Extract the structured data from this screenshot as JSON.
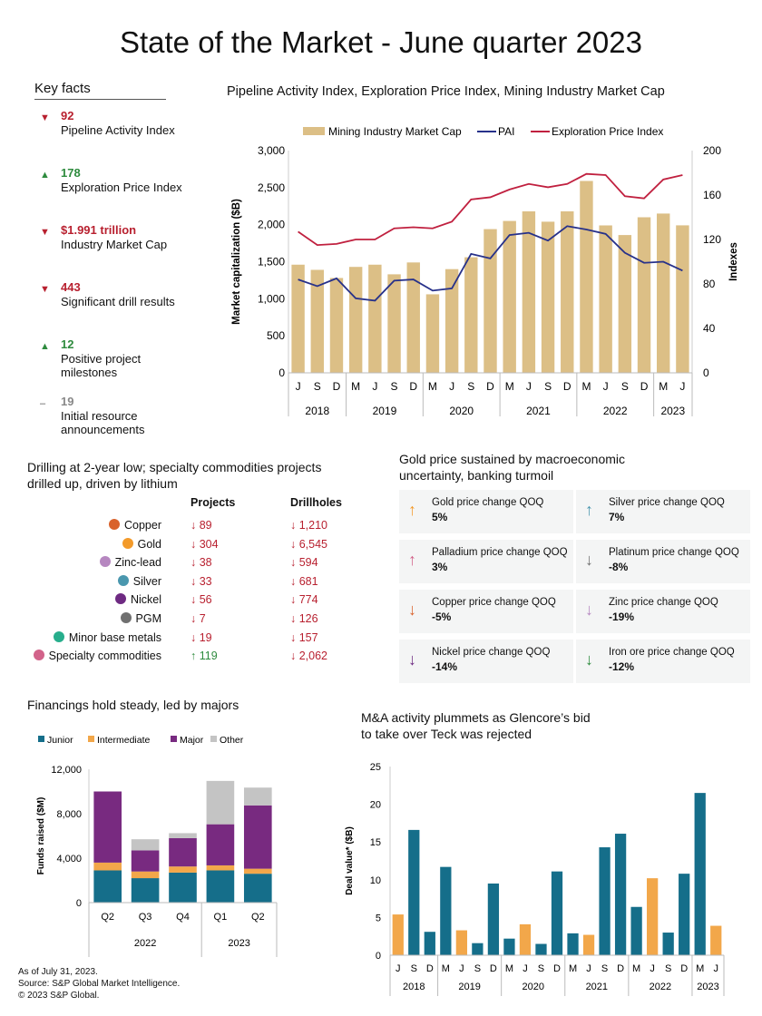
{
  "title": {
    "bold": "State of the Market -",
    "light": "June quarter 2023"
  },
  "key_facts": {
    "heading": "Key facts",
    "items": [
      {
        "value": "92",
        "label": "Pipeline Activity Index",
        "trend": "down",
        "color": "#b8202f"
      },
      {
        "value": "178",
        "label": "Exploration Price Index",
        "trend": "up",
        "color": "#2e8b3e"
      },
      {
        "value": "$1.991 trillion",
        "label": "Industry Market Cap",
        "trend": "down",
        "color": "#b8202f"
      },
      {
        "value": "443",
        "label": "Significant drill results",
        "trend": "down",
        "color": "#b8202f"
      },
      {
        "value": "12",
        "label": "Positive project milestones",
        "trend": "up",
        "color": "#2e8b3e"
      },
      {
        "value": "19",
        "label": "Initial resource announcements",
        "trend": "flat",
        "color": "#888888"
      }
    ]
  },
  "drilling": {
    "title": "Drilling at 2-year low; specialty commodities projects drilled up, driven by lithium",
    "col_projects": "Projects",
    "col_drillholes": "Drillholes",
    "rows": [
      {
        "name": "Copper",
        "color": "#d9622b",
        "projects": "↓ 89",
        "drillholes": "↓ 1,210",
        "p_up": false
      },
      {
        "name": "Gold",
        "color": "#f39a2a",
        "projects": "↓ 304",
        "drillholes": "↓ 6,545",
        "p_up": false
      },
      {
        "name": "Zinc-lead",
        "color": "#b687c0",
        "projects": "↓ 38",
        "drillholes": "↓ 594",
        "p_up": false
      },
      {
        "name": "Silver",
        "color": "#4a97ae",
        "projects": "↓ 33",
        "drillholes": "↓ 681",
        "p_up": false
      },
      {
        "name": "Nickel",
        "color": "#6e2a82",
        "projects": "↓ 56",
        "drillholes": "↓ 774",
        "p_up": false
      },
      {
        "name": "PGM",
        "color": "#707070",
        "projects": "↓ 7",
        "drillholes": "↓ 126",
        "p_up": false
      },
      {
        "name": "Minor base metals",
        "color": "#27ae8c",
        "projects": "↓ 19",
        "drillholes": "↓ 157",
        "p_up": false
      },
      {
        "name": "Specialty commodities",
        "color": "#d2638a",
        "projects": "↑ 119",
        "drillholes": "↓ 2,062",
        "p_up": true
      }
    ]
  },
  "gold": {
    "title": "Gold price sustained by macroeconomic uncertainty, banking turmoil",
    "tiles": [
      {
        "label": "Gold price change QOQ",
        "value": "5%",
        "arrow": "↑",
        "color": "#f39a2a"
      },
      {
        "label": "Silver price change QOQ",
        "value": "7%",
        "arrow": "↑",
        "color": "#4a97ae"
      },
      {
        "label": "Palladium price change QOQ",
        "value": "3%",
        "arrow": "↑",
        "color": "#d2638a"
      },
      {
        "label": "Platinum price change QOQ",
        "value": "-8%",
        "arrow": "↓",
        "color": "#707070"
      },
      {
        "label": "Copper price change QOQ",
        "value": "-5%",
        "arrow": "↓",
        "color": "#d9622b"
      },
      {
        "label": "Zinc price change QOQ",
        "value": "-19%",
        "arrow": "↓",
        "color": "#b687c0"
      },
      {
        "label": "Nickel price change QOQ",
        "value": "-14%",
        "arrow": "↓",
        "color": "#6e2a82"
      },
      {
        "label": "Iron ore price change QOQ",
        "value": "-12%",
        "arrow": "↓",
        "color": "#2e8b3e"
      }
    ]
  },
  "footer": {
    "line1": "As of July 31, 2023.",
    "line2": "Source: S&P Global Market Intelligence.",
    "line3": "© 2023 S&P Global."
  },
  "chart_data": [
    {
      "type": "bar+line",
      "title": "Pipeline Activity Index, Exploration Price Index, Mining Industry Market Cap",
      "ylabel": "Market capitalization ($B)",
      "y2label": "Indexes",
      "ylim": [
        0,
        3000
      ],
      "y2lim": [
        0,
        200
      ],
      "yticks": [
        "0",
        "500",
        "1,000",
        "1,500",
        "2,000",
        "2,500",
        "3,000"
      ],
      "y2ticks": [
        "0",
        "40",
        "80",
        "120",
        "160",
        "200"
      ],
      "categories": [
        "J",
        "S",
        "D",
        "M",
        "J",
        "S",
        "D",
        "M",
        "J",
        "S",
        "D",
        "M",
        "J",
        "S",
        "D",
        "M",
        "J",
        "S",
        "D",
        "M",
        "J"
      ],
      "years": [
        {
          "label": "2018",
          "n": 3
        },
        {
          "label": "2019",
          "n": 4
        },
        {
          "label": "2020",
          "n": 4
        },
        {
          "label": "2021",
          "n": 4
        },
        {
          "label": "2022",
          "n": 4
        },
        {
          "label": "2023",
          "n": 2
        }
      ],
      "legend": [
        "Mining Industry Market Cap",
        "PAI",
        "Exploration Price Index"
      ],
      "colors": {
        "bar": "#dcbf86",
        "pai": "#27318a",
        "epi": "#c0203f"
      },
      "series": [
        {
          "name": "Mining Industry Market Cap",
          "values": [
            1460,
            1390,
            1280,
            1430,
            1460,
            1330,
            1490,
            1060,
            1400,
            1560,
            1940,
            2050,
            2180,
            2040,
            2180,
            2590,
            1990,
            1860,
            2100,
            2150,
            1991
          ]
        },
        {
          "name": "PAI",
          "values": [
            84,
            78,
            85,
            67,
            65,
            83,
            84,
            74,
            76,
            107,
            103,
            124,
            126,
            119,
            132,
            129,
            125,
            108,
            99,
            100,
            92
          ]
        },
        {
          "name": "Exploration Price Index",
          "values": [
            127,
            115,
            116,
            120,
            120,
            130,
            131,
            130,
            136,
            156,
            158,
            165,
            170,
            167,
            170,
            179,
            178,
            159,
            157,
            174,
            178
          ]
        }
      ]
    },
    {
      "type": "stacked-bar",
      "title": "Financings hold steady, led by majors",
      "ylabel": "Funds raised ($M)",
      "ylim": [
        0,
        12000
      ],
      "yticks": [
        "0",
        "4,000",
        "8,000",
        "12,000"
      ],
      "categories": [
        "Q2",
        "Q3",
        "Q4",
        "Q1",
        "Q2"
      ],
      "years": [
        {
          "label": "2022",
          "n": 3
        },
        {
          "label": "2023",
          "n": 2
        }
      ],
      "series": [
        {
          "name": "Junior",
          "color": "#156e8a",
          "values": [
            2900,
            2200,
            2700,
            2900,
            2600
          ]
        },
        {
          "name": "Intermediate",
          "color": "#f2a74a",
          "values": [
            700,
            600,
            550,
            450,
            450
          ]
        },
        {
          "name": "Major",
          "color": "#782a80",
          "values": [
            6400,
            1900,
            2550,
            3700,
            5700
          ]
        },
        {
          "name": "Other",
          "color": "#c4c4c4",
          "values": [
            0,
            1000,
            450,
            3900,
            1600
          ]
        }
      ]
    },
    {
      "type": "bar",
      "title": "M&A activity plummets as Glencore’s bid to take over Teck was rejected",
      "ylabel": "Deal value* ($B)",
      "ylim": [
        0,
        25
      ],
      "yticks": [
        "0",
        "5",
        "10",
        "15",
        "20",
        "25"
      ],
      "categories": [
        "J",
        "S",
        "D",
        "M",
        "J",
        "S",
        "D",
        "M",
        "J",
        "S",
        "D",
        "M",
        "J",
        "S",
        "D",
        "M",
        "J",
        "S",
        "D",
        "M",
        "J"
      ],
      "years": [
        {
          "label": "2018",
          "n": 3
        },
        {
          "label": "2019",
          "n": 4
        },
        {
          "label": "2020",
          "n": 4
        },
        {
          "label": "2021",
          "n": 4
        },
        {
          "label": "2022",
          "n": 4
        },
        {
          "label": "2023",
          "n": 2
        }
      ],
      "colors": {
        "default": "#156e8a",
        "june": "#f2a74a"
      },
      "values": [
        5.4,
        16.6,
        3.1,
        11.7,
        3.3,
        1.6,
        9.5,
        2.2,
        4.1,
        1.5,
        11.1,
        2.9,
        2.7,
        14.3,
        16.1,
        6.4,
        10.2,
        3.0,
        10.8,
        21.5,
        3.9
      ]
    }
  ]
}
